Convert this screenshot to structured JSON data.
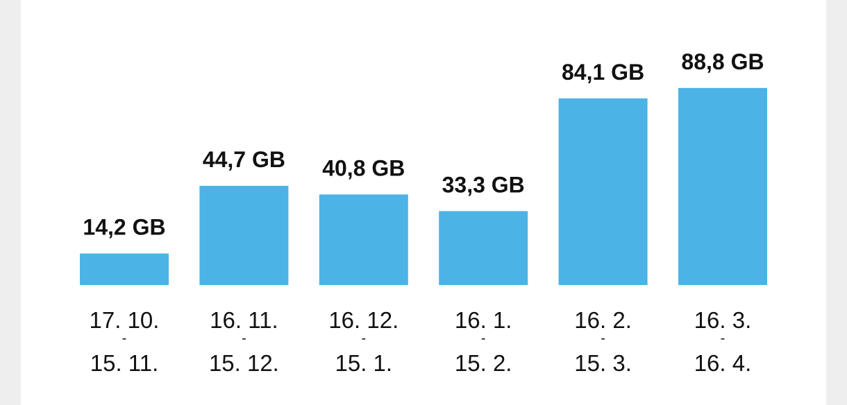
{
  "chart_data": {
    "type": "bar",
    "categories": [
      {
        "start": "17. 10.",
        "end": "15. 11."
      },
      {
        "start": "16. 11.",
        "end": "15. 12."
      },
      {
        "start": "16. 12.",
        "end": "15. 1."
      },
      {
        "start": "16. 1.",
        "end": "15. 2."
      },
      {
        "start": "16. 2.",
        "end": "15. 3."
      },
      {
        "start": "16. 3.",
        "end": "16. 4."
      }
    ],
    "values": [
      14.2,
      44.7,
      40.8,
      33.3,
      84.1,
      88.8
    ],
    "value_labels": [
      "14,2 GB",
      "44,7 GB",
      "40,8 GB",
      "33,3 GB",
      "84,1 GB",
      "88,8 GB"
    ],
    "range_separator": "-",
    "unit": "GB",
    "bar_color": "#4bb3e6",
    "ylim": [
      0,
      90
    ],
    "grid": false,
    "title": "",
    "xlabel": "",
    "ylabel": ""
  }
}
